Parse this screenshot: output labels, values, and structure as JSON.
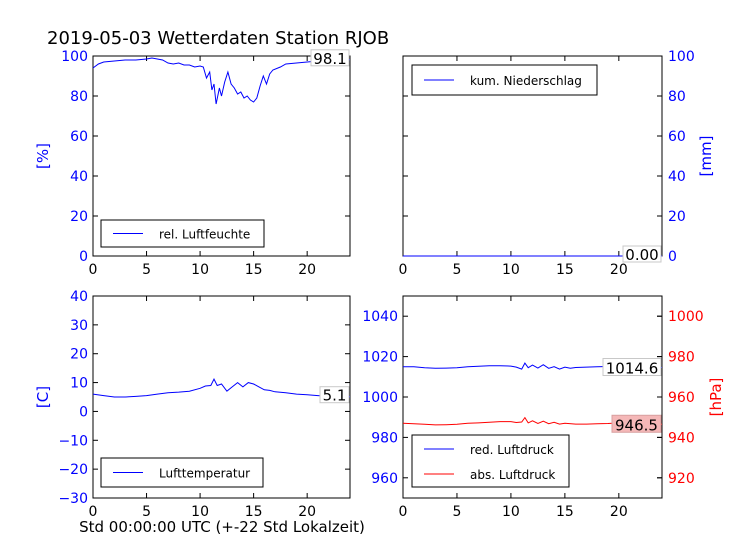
{
  "title": "2019-05-03 Wetterdaten Station RJOB",
  "xlabel": "Std 00:00:00 UTC (+-22 Std Lokalzeit)",
  "colors": {
    "primary": "#0000ff",
    "secondary": "#ff0000",
    "axes": "#000000",
    "badge_bg": "#f5b8b8"
  },
  "chart_data": [
    {
      "id": "humidity",
      "type": "line",
      "ylabel": "[%]",
      "xlim": [
        0,
        24
      ],
      "ylim": [
        0,
        100
      ],
      "xticks": [
        "0",
        "5",
        "10",
        "15",
        "20"
      ],
      "yticks": [
        "0",
        "20",
        "40",
        "60",
        "80",
        "100"
      ],
      "legend": {
        "location": "lower-center"
      },
      "last_value_label": "98.1",
      "series": [
        {
          "name": "rel. Luftfeuchte",
          "x": [
            0,
            0.5,
            1,
            2,
            3,
            4,
            5,
            5.5,
            6,
            6.5,
            7,
            7.5,
            8,
            8.5,
            9,
            9.5,
            10,
            10.3,
            10.6,
            10.9,
            11.1,
            11.3,
            11.5,
            11.8,
            12,
            12.3,
            12.6,
            12.9,
            13.2,
            13.5,
            13.8,
            14.1,
            14.4,
            14.7,
            15,
            15.3,
            15.6,
            15.9,
            16.2,
            16.5,
            16.8,
            17.5,
            18,
            19,
            20,
            21,
            22,
            23,
            24
          ],
          "y": [
            94,
            96,
            97,
            97.5,
            98,
            98,
            98.5,
            99,
            98.5,
            98,
            96.5,
            96,
            96.5,
            95.5,
            95.5,
            94.5,
            95,
            94.5,
            89,
            92,
            83,
            86,
            76,
            84,
            80,
            87,
            92,
            86,
            84,
            81,
            82,
            79,
            80,
            78,
            77,
            79,
            85,
            90,
            86,
            91,
            93,
            94.5,
            96,
            96.5,
            97,
            97.5,
            97.5,
            98,
            98.1
          ]
        }
      ]
    },
    {
      "id": "precipitation",
      "type": "line",
      "ylabel": "[mm]",
      "xlim": [
        0,
        24
      ],
      "ylim": [
        0,
        100
      ],
      "xticks": [
        "0",
        "5",
        "10",
        "15",
        "20"
      ],
      "yticks": [
        "0",
        "20",
        "40",
        "60",
        "80",
        "100"
      ],
      "legend": {
        "location": "upper-left"
      },
      "last_value_label": "0.00",
      "series": [
        {
          "name": "kum. Niederschlag",
          "x": [
            0,
            24
          ],
          "y": [
            0,
            0
          ]
        }
      ]
    },
    {
      "id": "temperature",
      "type": "line",
      "ylabel": "[C]",
      "xlim": [
        0,
        24
      ],
      "ylim": [
        -30,
        40
      ],
      "xticks": [
        "0",
        "5",
        "10",
        "15",
        "20"
      ],
      "yticks": [
        "−30",
        "−20",
        "−10",
        "0",
        "10",
        "20",
        "30",
        "40"
      ],
      "legend": {
        "location": "lower-center"
      },
      "last_value_label": "5.1",
      "series": [
        {
          "name": "Lufttemperatur",
          "x": [
            0,
            1,
            2,
            3,
            4,
            5,
            6,
            7,
            8,
            9,
            10,
            10.5,
            11,
            11.3,
            11.6,
            12,
            12.5,
            13,
            13.5,
            14,
            14.5,
            15,
            15.5,
            16,
            16.5,
            17,
            18,
            19,
            20,
            21,
            22,
            23,
            24
          ],
          "y": [
            6,
            5.5,
            5,
            5,
            5.2,
            5.5,
            6,
            6.5,
            6.7,
            7,
            8,
            8.8,
            9,
            11.2,
            9,
            9.5,
            7,
            8.5,
            10,
            8.5,
            10,
            9.5,
            8.5,
            7.5,
            7.3,
            6.8,
            6.5,
            6,
            5.8,
            5.5,
            5.2,
            5.1,
            5.1
          ]
        }
      ]
    },
    {
      "id": "pressure",
      "type": "line",
      "ylabel": "[hPa]",
      "xlim": [
        0,
        24
      ],
      "ylim": [
        950,
        1050
      ],
      "y2lim": [
        910,
        1010
      ],
      "xticks": [
        "0",
        "5",
        "10",
        "15",
        "20"
      ],
      "yticks": [
        "960",
        "980",
        "1000",
        "1020",
        "1040"
      ],
      "y2ticks": [
        "920",
        "940",
        "960",
        "980",
        "1000"
      ],
      "legend": {
        "location": "lower-left"
      },
      "series": [
        {
          "name": "red. Luftdruck",
          "axis": "left",
          "x": [
            0,
            1,
            2,
            3,
            4,
            5,
            6,
            7,
            8,
            9,
            10,
            10.5,
            11,
            11.3,
            11.6,
            12,
            12.5,
            13,
            13.5,
            14,
            14.5,
            15,
            15.5,
            16,
            17,
            18,
            19,
            20,
            21,
            22,
            23,
            24
          ],
          "y": [
            1015,
            1015,
            1014.5,
            1014.2,
            1014.3,
            1014.5,
            1015,
            1015.2,
            1015.5,
            1015.5,
            1015.3,
            1014.8,
            1013.8,
            1016.8,
            1014.5,
            1015.8,
            1014.3,
            1016,
            1014.2,
            1015,
            1013.8,
            1014.8,
            1014.2,
            1014.6,
            1014.8,
            1015,
            1015.1,
            1015.3,
            1015.2,
            1015.3,
            1015,
            1014.6
          ],
          "last_value_label": "1014.6"
        },
        {
          "name": "abs. Luftdruck",
          "axis": "right",
          "x": [
            0,
            1,
            2,
            3,
            4,
            5,
            6,
            7,
            8,
            9,
            10,
            10.5,
            11,
            11.3,
            11.6,
            12,
            12.5,
            13,
            13.5,
            14,
            14.5,
            15,
            16,
            17,
            18,
            19,
            20,
            21,
            22,
            23,
            24
          ],
          "y": [
            947,
            946.8,
            946.5,
            946.2,
            946.3,
            946.5,
            947,
            947.2,
            947.5,
            947.8,
            947.8,
            947.4,
            947.6,
            949.8,
            947.2,
            948.2,
            946.9,
            948,
            946.8,
            947.5,
            946.6,
            947,
            946.6,
            946.6,
            946.8,
            946.9,
            947.2,
            947.3,
            947.2,
            946.9,
            946.5
          ],
          "last_value_label": "946.5"
        }
      ]
    }
  ]
}
